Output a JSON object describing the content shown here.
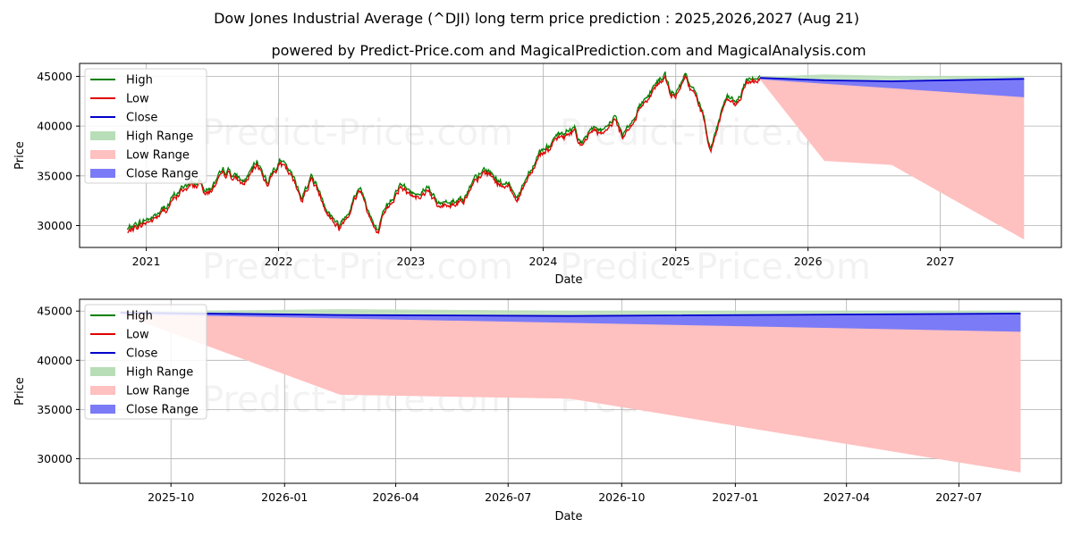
{
  "chart_data": {
    "title": "Dow Jones Industrial Average (^DJI) long term price prediction : 2025,2026,2027 (Aug 21)",
    "subtitle": "powered by Predict-Price.com and MagicalPrediction.com and MagicalAnalysis.com",
    "watermark": "Predict-Price.com",
    "colors": {
      "high": "#008000",
      "low": "#e00000",
      "close": "#0000cc",
      "high_range": "#b8deb8",
      "low_range": "#ffc0c0",
      "close_range": "#7b7bf7"
    },
    "legend": [
      "High",
      "Low",
      "Close",
      "High Range",
      "Low Range",
      "Close Range"
    ],
    "panels": [
      {
        "type": "line",
        "xlabel": "Date",
        "ylabel": "Price",
        "xlim": [
          "2020-07-01",
          "2027-12-01"
        ],
        "ylim": [
          27800,
          46300
        ],
        "x_ticks": [
          "2021",
          "2022",
          "2023",
          "2024",
          "2025",
          "2026",
          "2027"
        ],
        "y_ticks": [
          30000,
          35000,
          40000,
          45000
        ],
        "legend_position": "upper-left",
        "grid": true,
        "history_anchors": [
          [
            "2020-11-10",
            29400
          ],
          [
            "2020-12-10",
            30100
          ],
          [
            "2021-01-25",
            30800
          ],
          [
            "2021-02-20",
            31500
          ],
          [
            "2021-03-15",
            32600
          ],
          [
            "2021-04-20",
            33900
          ],
          [
            "2021-05-25",
            34300
          ],
          [
            "2021-06-20",
            33500
          ],
          [
            "2021-08-15",
            35300
          ],
          [
            "2021-09-25",
            34200
          ],
          [
            "2021-11-05",
            36100
          ],
          [
            "2021-12-01",
            34500
          ],
          [
            "2022-01-05",
            36500
          ],
          [
            "2022-02-15",
            34200
          ],
          [
            "2022-03-08",
            32800
          ],
          [
            "2022-04-01",
            35000
          ],
          [
            "2022-05-20",
            31400
          ],
          [
            "2022-06-17",
            29900
          ],
          [
            "2022-08-15",
            33800
          ],
          [
            "2022-09-30",
            29000
          ],
          [
            "2022-11-30",
            34300
          ],
          [
            "2023-01-05",
            33000
          ],
          [
            "2023-02-20",
            34000
          ],
          [
            "2023-03-15",
            32000
          ],
          [
            "2023-05-25",
            32800
          ],
          [
            "2023-07-25",
            35400
          ],
          [
            "2023-08-30",
            34500
          ],
          [
            "2023-10-25",
            33000
          ],
          [
            "2023-12-20",
            37400
          ],
          [
            "2024-02-10",
            38500
          ],
          [
            "2024-03-28",
            39700
          ],
          [
            "2024-04-20",
            38000
          ],
          [
            "2024-05-20",
            39900
          ],
          [
            "2024-06-20",
            39000
          ],
          [
            "2024-07-17",
            41000
          ],
          [
            "2024-08-06",
            39000
          ],
          [
            "2024-09-30",
            42300
          ],
          [
            "2024-11-10",
            44300
          ],
          [
            "2024-12-03",
            44900
          ],
          [
            "2024-12-20",
            42700
          ],
          [
            "2025-01-30",
            44700
          ],
          [
            "2025-03-10",
            42000
          ],
          [
            "2025-04-08",
            37800
          ],
          [
            "2025-05-15",
            42300
          ],
          [
            "2025-06-20",
            42200
          ],
          [
            "2025-07-20",
            44400
          ],
          [
            "2025-08-21",
            44950
          ]
        ],
        "forecast": {
          "x": [
            "2025-08-21",
            "2026-02-15",
            "2026-08-20",
            "2027-08-20"
          ],
          "high": [
            44950,
            45200,
            45050,
            45050
          ],
          "low": [
            44700,
            36500,
            36100,
            28600
          ],
          "close_upper": [
            44850,
            44600,
            44500,
            44750
          ],
          "close_lower": [
            44700,
            44250,
            43800,
            42900
          ]
        }
      },
      {
        "type": "area",
        "xlabel": "Date",
        "ylabel": "Price",
        "xlim": [
          "2025-07-19",
          "2027-09-22"
        ],
        "ylim": [
          27500,
          46200
        ],
        "x_ticks": [
          "2025-10",
          "2026-01",
          "2026-04",
          "2026-07",
          "2026-10",
          "2027-01",
          "2027-04",
          "2027-07"
        ],
        "y_ticks": [
          30000,
          35000,
          40000,
          45000
        ],
        "legend_position": "upper-left",
        "grid": true,
        "forecast": {
          "x": [
            "2025-08-21",
            "2026-02-15",
            "2026-08-20",
            "2027-08-20"
          ],
          "high": [
            44950,
            45200,
            45050,
            45050
          ],
          "low": [
            44700,
            36500,
            36100,
            28600
          ],
          "close_upper": [
            44850,
            44600,
            44500,
            44750
          ],
          "close_lower": [
            44700,
            44250,
            43800,
            42900
          ]
        }
      }
    ]
  }
}
